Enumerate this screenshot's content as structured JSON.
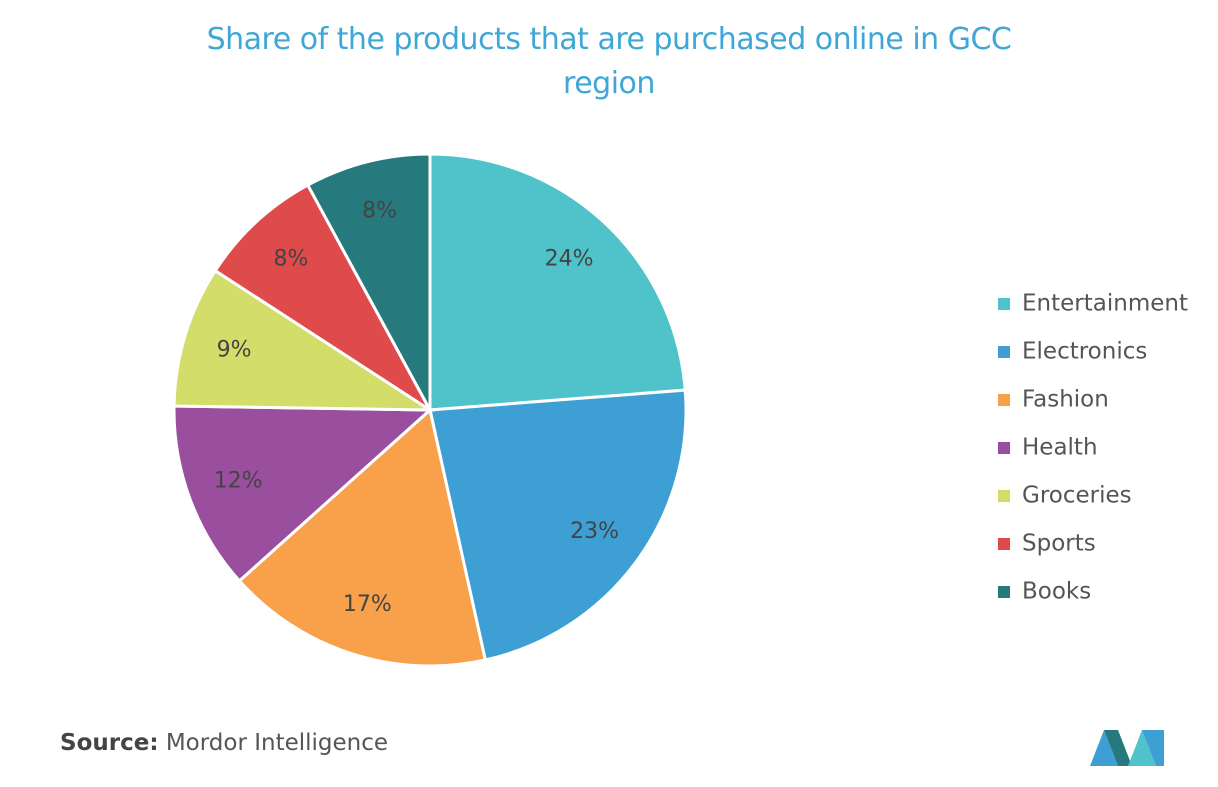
{
  "chart_data": {
    "type": "pie",
    "title": "Share of the products that are purchased online in GCC region",
    "categories": [
      "Entertainment",
      "Electronics",
      "Fashion",
      "Health",
      "Groceries",
      "Sports",
      "Books"
    ],
    "values": [
      24,
      23,
      17,
      12,
      9,
      8,
      8
    ],
    "value_labels": [
      "24%",
      "23%",
      "17%",
      "12%",
      "9%",
      "8%",
      "8%"
    ],
    "colors": [
      "#4fc3c9",
      "#3d9fd3",
      "#f9a04a",
      "#9a4f9e",
      "#d2dd6a",
      "#df4a4a",
      "#267a7e"
    ],
    "legend": "right",
    "source_label": "Source:",
    "source": "Mordor Intelligence"
  }
}
